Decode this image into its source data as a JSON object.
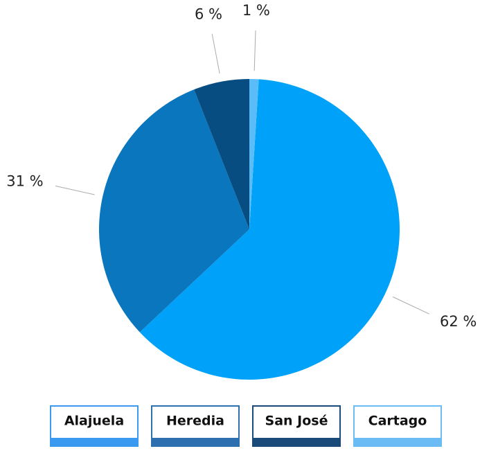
{
  "chart_data": {
    "type": "pie",
    "categories": [
      "Alajuela",
      "Heredia",
      "San José",
      "Cartago"
    ],
    "values": [
      62,
      31,
      6,
      1
    ],
    "value_labels": [
      "62 %",
      "31 %",
      "6 %",
      "1 %"
    ],
    "colors": [
      "#00a2f9",
      "#0a76bd",
      "#074d82",
      "#5bbdf8"
    ],
    "legend_colors": [
      "#3a9af0",
      "#2e6fb0",
      "#1a4a7a",
      "#6bbcf5"
    ]
  }
}
